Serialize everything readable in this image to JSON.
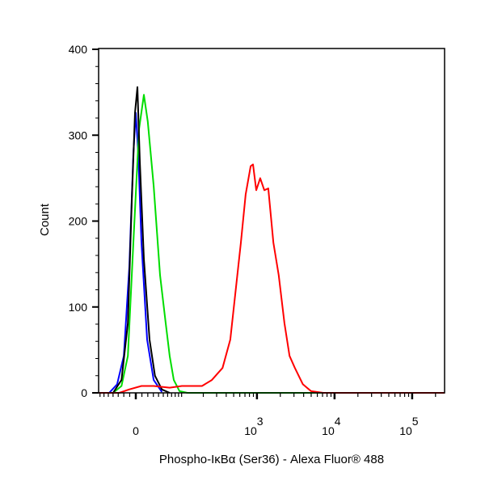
{
  "chart_data": {
    "type": "line",
    "title": "",
    "xlabel": "Phospho-IκBα (Ser36) - Alexa Fluor® 488",
    "ylabel": "Count",
    "x_scale": "biexponential",
    "ylim": [
      0,
      400
    ],
    "xlim": [
      -73,
      261000
    ],
    "y_ticks": [
      0,
      100,
      200,
      300,
      400
    ],
    "x_ticks": [
      {
        "value": 0,
        "base": "0",
        "exp": ""
      },
      {
        "value": 1000,
        "base": "10",
        "exp": "3"
      },
      {
        "value": 10000,
        "base": "10",
        "exp": "4"
      },
      {
        "value": 100000,
        "base": "10",
        "exp": "5"
      }
    ],
    "grid": false,
    "legend": "none",
    "series": [
      {
        "color": "#0000ff",
        "x": [
          -48,
          -32,
          -20,
          -10.6,
          -4,
          0,
          4,
          9.3,
          18.8,
          30.5,
          47
        ],
        "y": [
          0,
          10,
          43,
          147,
          279,
          326,
          279,
          175,
          62,
          15,
          1
        ]
      },
      {
        "color": "#00dd00",
        "x": [
          -40,
          -24,
          -13,
          -4,
          5.3,
          13.3,
          20,
          30.5,
          43,
          55.5,
          65,
          76,
          93,
          121,
          260000
        ],
        "y": [
          0,
          8,
          43,
          175,
          307,
          347,
          316,
          241,
          137,
          81,
          43,
          15,
          2,
          0,
          0
        ]
      },
      {
        "color": "#000000",
        "x": [
          -40,
          -24,
          -13,
          -6.6,
          -1.3,
          2.6,
          6.6,
          13.3,
          23,
          33,
          47,
          65
        ],
        "y": [
          0,
          15,
          81,
          222,
          326,
          356,
          269,
          156,
          62,
          20,
          4,
          0
        ]
      },
      {
        "color": "#ff0000",
        "x": [
          -73,
          -28,
          -11,
          9.3,
          30.5,
          65,
          101,
          192,
          260,
          358,
          452,
          620,
          715,
          830,
          890,
          980,
          1100,
          1245,
          1400,
          1630,
          1910,
          2260,
          2630,
          3080,
          3910,
          4980,
          7150,
          260000
        ],
        "y": [
          0,
          0,
          4,
          8,
          8,
          6,
          8,
          8,
          15,
          29,
          62,
          175,
          231,
          264,
          266,
          236,
          250,
          236,
          238,
          175,
          137,
          81,
          43,
          29,
          10,
          2,
          0,
          0
        ]
      }
    ]
  }
}
